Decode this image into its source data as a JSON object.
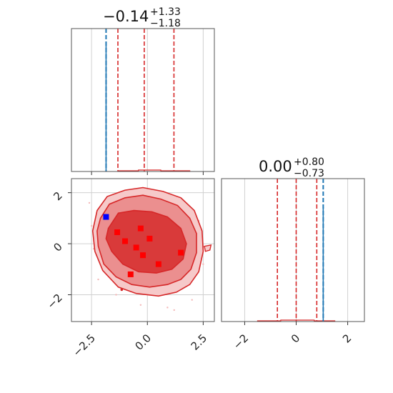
{
  "chart_data": [
    {
      "type": "line",
      "panel": "marginal-x",
      "title": {
        "value": "−0.14",
        "upper": "+1.33",
        "lower": "−1.18"
      },
      "xlim": [
        -3.4,
        3.0
      ],
      "grid": true,
      "x_ticks": [
        -2.5,
        0.0,
        2.5
      ],
      "quantiles": [
        -1.32,
        -0.14,
        1.19
      ],
      "quantile_color": "#d62728",
      "true_value": -1.85,
      "true_value_color": "#1f77b4",
      "histogram_color": "#d62728"
    },
    {
      "type": "scatter",
      "panel": "joint",
      "xlim": [
        -3.4,
        3.0
      ],
      "ylim": [
        -3.05,
        2.55
      ],
      "grid": true,
      "x_ticks": [
        -2.5,
        0.0,
        2.5
      ],
      "x_tick_labels": [
        "−2.5",
        "0.0",
        "2.5"
      ],
      "y_ticks": [
        -2,
        0,
        2
      ],
      "y_tick_labels": [
        "−2",
        "0",
        "2"
      ],
      "contour_color": "#d62728",
      "red_points": [
        {
          "x": -1.35,
          "y": 0.45
        },
        {
          "x": -1.0,
          "y": 0.1
        },
        {
          "x": -0.3,
          "y": 0.6
        },
        {
          "x": 0.1,
          "y": 0.2
        },
        {
          "x": -0.5,
          "y": -0.15
        },
        {
          "x": -0.2,
          "y": -0.45
        },
        {
          "x": 0.5,
          "y": -0.8
        },
        {
          "x": 1.5,
          "y": -0.35
        },
        {
          "x": -0.75,
          "y": -1.2
        }
      ],
      "red_point_color": "#ff0000",
      "blue_point": {
        "x": -1.85,
        "y": 1.05
      },
      "blue_point_color": "#0000ff"
    },
    {
      "type": "line",
      "panel": "marginal-y",
      "title": {
        "value": "0.00",
        "upper": "+0.80",
        "lower": "−0.73"
      },
      "xlim": [
        -2.9,
        2.65
      ],
      "grid": true,
      "x_ticks": [
        -2,
        0,
        2
      ],
      "x_tick_labels": [
        "−2",
        "0",
        "2"
      ],
      "quantiles": [
        -0.73,
        0.0,
        0.8
      ],
      "quantile_color": "#d62728",
      "true_value": 1.05,
      "true_value_color": "#1f77b4",
      "histogram_color": "#d62728"
    }
  ]
}
